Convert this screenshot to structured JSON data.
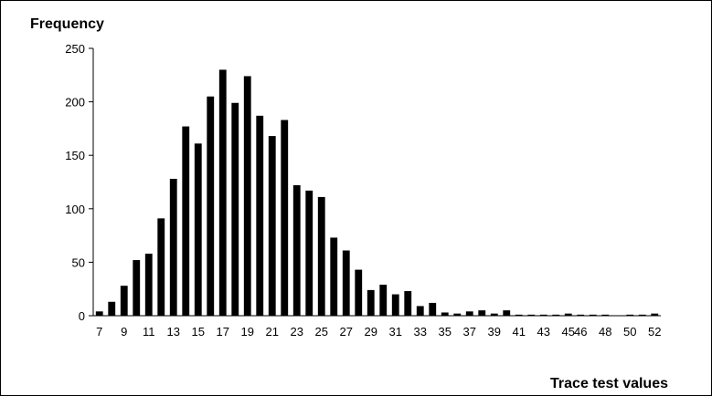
{
  "chart_data": {
    "type": "bar",
    "title": "",
    "ylabel": "Frequency",
    "xlabel": "Trace test values",
    "ylim": [
      0,
      250
    ],
    "yticks": [
      0,
      50,
      100,
      150,
      200,
      250
    ],
    "grid": false,
    "legend": "none",
    "bar_color": "#000000",
    "categories": [
      7,
      8,
      9,
      10,
      11,
      12,
      13,
      14,
      15,
      16,
      17,
      18,
      19,
      20,
      21,
      22,
      23,
      24,
      25,
      26,
      27,
      28,
      29,
      30,
      31,
      32,
      33,
      34,
      35,
      36,
      37,
      38,
      39,
      40,
      41,
      42,
      43,
      44,
      45,
      46,
      47,
      48,
      49,
      50,
      51,
      52
    ],
    "values": [
      4,
      13,
      28,
      52,
      58,
      91,
      128,
      177,
      161,
      205,
      230,
      199,
      224,
      187,
      168,
      183,
      122,
      117,
      111,
      73,
      61,
      43,
      24,
      29,
      20,
      23,
      9,
      12,
      3,
      2,
      4,
      5,
      2,
      5,
      1,
      1,
      1,
      1,
      2,
      1,
      1,
      1,
      0,
      1,
      1,
      2
    ],
    "x_tick_labels": [
      "7",
      "9",
      "11",
      "13",
      "15",
      "17",
      "19",
      "21",
      "23",
      "25",
      "27",
      "29",
      "31",
      "33",
      "35",
      "37",
      "39",
      "41",
      "43",
      "45",
      "46",
      "48",
      "50",
      "52"
    ]
  }
}
